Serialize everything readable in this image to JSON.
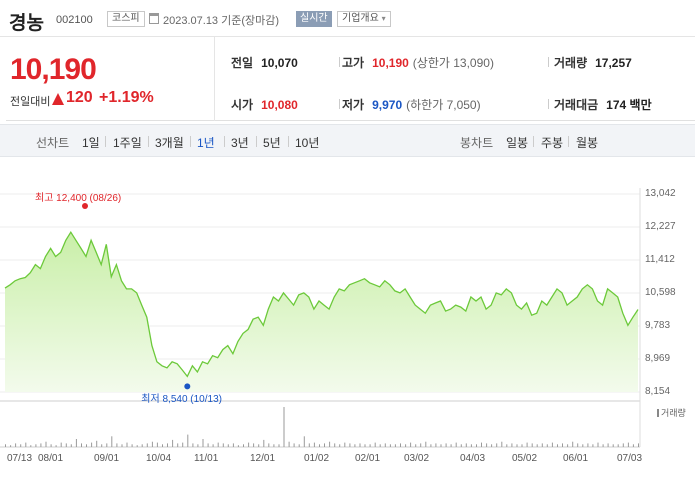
{
  "header": {
    "name": "경농",
    "code": "002100",
    "market": "코스피",
    "date": "2023.07.13 기준(장마감)",
    "realtime_label": "실시간",
    "corp_label": "기업개요",
    "corp_caret": "▾"
  },
  "summary": {
    "price": "10,190",
    "change_label": "전일대비",
    "change_value": "120",
    "change_pct": "+1.19%",
    "stats": {
      "prev": {
        "label": "전일",
        "value": "10,070"
      },
      "high": {
        "label": "고가",
        "value": "10,190",
        "sub": "(상한가 13,090)"
      },
      "volume": {
        "label": "거래량",
        "value": "17,257"
      },
      "open": {
        "label": "시가",
        "value": "10,080"
      },
      "low": {
        "label": "저가",
        "value": "9,970",
        "sub": "(하한가 7,050)"
      },
      "amount": {
        "label": "거래대금",
        "value": "174 백만"
      }
    }
  },
  "tabs": {
    "line_label": "선차트",
    "periods": [
      "1일",
      "1주일",
      "3개월",
      "1년",
      "3년",
      "5년",
      "10년"
    ],
    "active_period": "1년",
    "candle_label": "봉차트",
    "candles": [
      "일봉",
      "주봉",
      "월봉"
    ]
  },
  "chart_data": {
    "type": "area",
    "y_ticks": [
      "13,042",
      "12,227",
      "11,412",
      "10,598",
      "9,783",
      "8,969",
      "8,154"
    ],
    "ylim": [
      8154,
      13042
    ],
    "x_ticks": [
      "07/13",
      "08/01",
      "09/01",
      "10/04",
      "11/01",
      "12/01",
      "01/02",
      "02/01",
      "03/02",
      "04/03",
      "05/02",
      "06/01",
      "07/03"
    ],
    "high_annotation": "최고 12,400 (08/26)",
    "low_annotation": "최저 8,540 (10/13)",
    "volume_legend": "거래량",
    "values": [
      10720,
      10800,
      10900,
      10950,
      10980,
      11100,
      11300,
      11200,
      11500,
      11700,
      11500,
      11600,
      11900,
      12100,
      11900,
      11700,
      11500,
      11900,
      11600,
      11300,
      11800,
      11000,
      11300,
      10900,
      10700,
      10700,
      10600,
      10300,
      10000,
      9300,
      8900,
      8800,
      8750,
      8900,
      8850,
      8700,
      8540,
      8800,
      8650,
      8900,
      8850,
      9050,
      9000,
      9200,
      9300,
      9100,
      9400,
      9600,
      9700,
      9950,
      10000,
      9800,
      10200,
      10500,
      10400,
      10600,
      10450,
      10300,
      10550,
      10600,
      10500,
      10200,
      10400,
      10300,
      10200,
      10500,
      10700,
      10650,
      10800,
      10850,
      10900,
      10950,
      10850,
      10800,
      10750,
      10900,
      10800,
      10650,
      10600,
      10700,
      10500,
      10300,
      10200,
      10100,
      10300,
      10350,
      10400,
      10150,
      10200,
      10300,
      10250,
      10150,
      10500,
      10400,
      10500,
      10200,
      10300,
      10600,
      10550,
      10700,
      10600,
      10300,
      10200,
      10350,
      10050,
      10100,
      10400,
      10300,
      10500,
      10700,
      10600,
      10300,
      10400,
      10500,
      10700,
      10800,
      10700,
      10400,
      10300,
      10700,
      10600,
      10500,
      10100,
      9800,
      10000,
      10190
    ],
    "volume": [
      3,
      2,
      4,
      3,
      5,
      2,
      3,
      4,
      6,
      3,
      2,
      5,
      4,
      3,
      9,
      4,
      3,
      5,
      7,
      3,
      4,
      12,
      4,
      3,
      5,
      3,
      2,
      3,
      4,
      6,
      5,
      3,
      4,
      8,
      4,
      5,
      14,
      4,
      3,
      9,
      4,
      3,
      5,
      4,
      3,
      4,
      2,
      3,
      5,
      4,
      3,
      8,
      4,
      3,
      3,
      45,
      6,
      4,
      3,
      12,
      4,
      5,
      3,
      4,
      6,
      4,
      3,
      5,
      4,
      3,
      4,
      3,
      3,
      5,
      3,
      4,
      3,
      3,
      4,
      3,
      5,
      3,
      4,
      6,
      3,
      4,
      3,
      4,
      3,
      5,
      3,
      4,
      3,
      3,
      5,
      4,
      3,
      4,
      6,
      3,
      4,
      3,
      3,
      5,
      4,
      3,
      4,
      3,
      5,
      3,
      4,
      3,
      6,
      4,
      3,
      4,
      3,
      5,
      3,
      4,
      3,
      3,
      4,
      5,
      3,
      4
    ]
  }
}
